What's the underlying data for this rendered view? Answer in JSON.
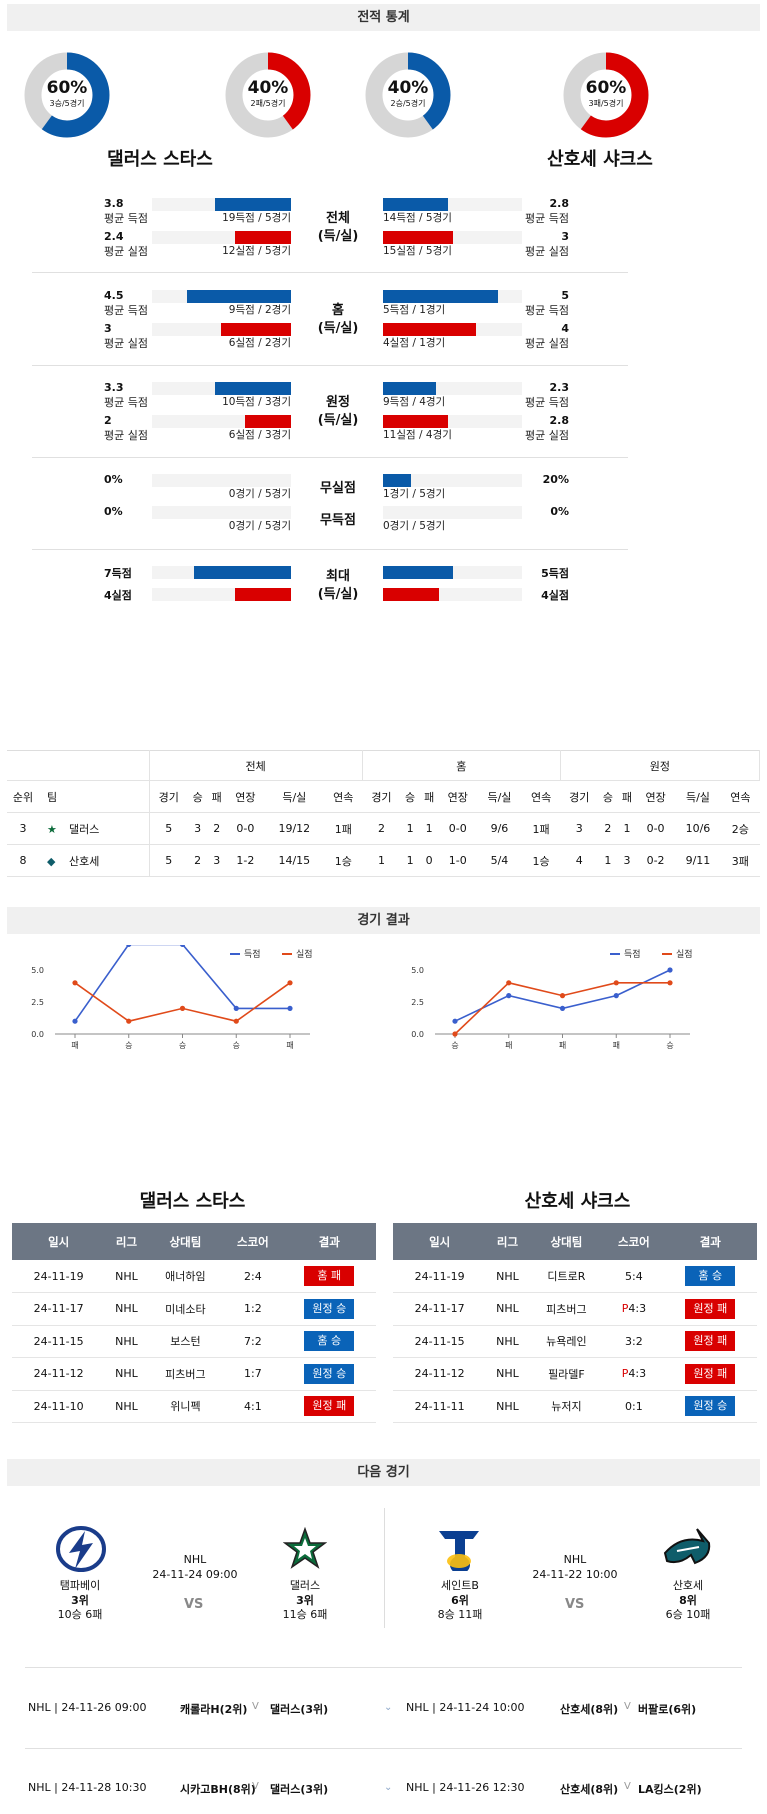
{
  "sections": {
    "stats": "전적 통계",
    "results": "경기 결과",
    "next": "다음 경기"
  },
  "summary": {
    "donuts": [
      {
        "pct": "60%",
        "sub": "3승/5경기",
        "fraction": 0.6,
        "color": "#0a5aa8"
      },
      {
        "pct": "40%",
        "sub": "2패/5경기",
        "fraction": 0.4,
        "color": "#d90000"
      },
      {
        "pct": "40%",
        "sub": "2승/5경기",
        "fraction": 0.4,
        "color": "#0a5aa8"
      },
      {
        "pct": "60%",
        "sub": "3패/5경기",
        "fraction": 0.6,
        "color": "#d90000"
      }
    ],
    "home_team": "댈러스 스타스",
    "away_team": "산호세 샤크스"
  },
  "stat_groups": [
    {
      "center": "전체",
      "center2": "(득/실)",
      "rows": [
        {
          "lval": "3.8",
          "llbl": "평균 득점",
          "lsub": "19득점 / 5경기",
          "lfill": 0.55,
          "rval": "2.8",
          "rlbl": "평균 득점",
          "rsub": "14득점 / 5경기",
          "rfill": 0.47,
          "color": "blue"
        },
        {
          "lval": "2.4",
          "llbl": "평균 실점",
          "lsub": "12실점 / 5경기",
          "lfill": 0.4,
          "rval": "3",
          "rlbl": "평균 실점",
          "rsub": "15실점 / 5경기",
          "rfill": 0.5,
          "color": "red"
        }
      ]
    },
    {
      "center": "홈",
      "center2": "(득/실)",
      "rows": [
        {
          "lval": "4.5",
          "llbl": "평균 득점",
          "lsub": "9득점 / 2경기",
          "lfill": 0.75,
          "rval": "5",
          "rlbl": "평균 득점",
          "rsub": "5득점 / 1경기",
          "rfill": 0.83,
          "color": "blue"
        },
        {
          "lval": "3",
          "llbl": "평균 실점",
          "lsub": "6실점 / 2경기",
          "lfill": 0.5,
          "rval": "4",
          "rlbl": "평균 실점",
          "rsub": "4실점 / 1경기",
          "rfill": 0.67,
          "color": "red"
        }
      ]
    },
    {
      "center": "원정",
      "center2": "(득/실)",
      "rows": [
        {
          "lval": "3.3",
          "llbl": "평균 득점",
          "lsub": "10득점 / 3경기",
          "lfill": 0.55,
          "rval": "2.3",
          "rlbl": "평균 득점",
          "rsub": "9득점 / 4경기",
          "rfill": 0.38,
          "color": "blue"
        },
        {
          "lval": "2",
          "llbl": "평균 실점",
          "lsub": "6실점 / 3경기",
          "lfill": 0.33,
          "rval": "2.8",
          "rlbl": "평균 실점",
          "rsub": "11실점 / 4경기",
          "rfill": 0.47,
          "color": "red"
        }
      ]
    }
  ],
  "zero_groups": [
    {
      "lval": "0%",
      "lsub": "0경기 / 5경기",
      "lfill": 0,
      "center": "무실점",
      "rval": "20%",
      "rsub": "1경기 / 5경기",
      "rfill": 0.2
    },
    {
      "lval": "0%",
      "lsub": "0경기 / 5경기",
      "lfill": 0,
      "center": "무득점",
      "rval": "0%",
      "rsub": "0경기 / 5경기",
      "rfill": 0
    }
  ],
  "max_group": {
    "center": "최대",
    "center2": "(득/실)",
    "rows": [
      {
        "lval": "7득점",
        "lfill": 0.7,
        "rval": "5득점",
        "rfill": 0.5,
        "color": "blue"
      },
      {
        "lval": "4실점",
        "lfill": 0.4,
        "rval": "4실점",
        "rfill": 0.4,
        "color": "red"
      }
    ]
  },
  "standings": {
    "group_headers": [
      "전체",
      "홈",
      "원정"
    ],
    "headers": [
      "순위",
      "팀",
      "경기",
      "승",
      "패",
      "연장",
      "득/실",
      "연속",
      "경기",
      "승",
      "패",
      "연장",
      "득/실",
      "연속",
      "경기",
      "승",
      "패",
      "연장",
      "득/실",
      "연속"
    ],
    "rows": [
      {
        "rank": "3",
        "team": "댈러스",
        "cells": [
          "5",
          "3",
          "2",
          "0-0",
          "19/12",
          "1패",
          "2",
          "1",
          "1",
          "0-0",
          "9/6",
          "1패",
          "3",
          "2",
          "1",
          "0-0",
          "10/6",
          "2승"
        ]
      },
      {
        "rank": "8",
        "team": "산호세",
        "cells": [
          "5",
          "2",
          "3",
          "1-2",
          "14/15",
          "1승",
          "1",
          "1",
          "0",
          "1-0",
          "5/4",
          "1승",
          "4",
          "1",
          "3",
          "0-2",
          "9/11",
          "3패"
        ]
      }
    ]
  },
  "chart_data": [
    {
      "type": "line",
      "categories": [
        "패",
        "승",
        "승",
        "승",
        "패"
      ],
      "series": [
        {
          "name": "득점",
          "values": [
            1,
            7,
            7,
            2,
            2
          ],
          "color": "#3a5fcd"
        },
        {
          "name": "실점",
          "values": [
            4,
            1,
            2,
            1,
            4
          ],
          "color": "#e04a1a"
        }
      ],
      "ylim": [
        0,
        10
      ],
      "yticks": [
        "0.0",
        "2.5",
        "5.0",
        "7.5",
        "10.0"
      ],
      "legend": "top-right"
    },
    {
      "type": "line",
      "categories": [
        "승",
        "패",
        "패",
        "패",
        "승"
      ],
      "series": [
        {
          "name": "득점",
          "values": [
            1,
            3,
            2,
            3,
            5
          ],
          "color": "#3a5fcd"
        },
        {
          "name": "실점",
          "values": [
            0,
            4,
            3,
            4,
            4
          ],
          "color": "#e04a1a"
        }
      ],
      "ylim": [
        0,
        10
      ],
      "yticks": [
        "0.0",
        "2.5",
        "5.0",
        "7.5",
        "10.0"
      ],
      "legend": "top-right"
    }
  ],
  "results": {
    "headers": [
      "일시",
      "리그",
      "상대팀",
      "스코어",
      "결과"
    ],
    "left": [
      {
        "date": "24-11-19",
        "league": "NHL",
        "opp": "애너하임",
        "pfx": "",
        "score": "2:4",
        "result": "홈 패",
        "color": "red"
      },
      {
        "date": "24-11-17",
        "league": "NHL",
        "opp": "미네소타",
        "pfx": "",
        "score": "1:2",
        "result": "원정 승",
        "color": "blue"
      },
      {
        "date": "24-11-15",
        "league": "NHL",
        "opp": "보스턴",
        "pfx": "",
        "score": "7:2",
        "result": "홈 승",
        "color": "blue"
      },
      {
        "date": "24-11-12",
        "league": "NHL",
        "opp": "피츠버그",
        "pfx": "",
        "score": "1:7",
        "result": "원정 승",
        "color": "blue"
      },
      {
        "date": "24-11-10",
        "league": "NHL",
        "opp": "위니펙",
        "pfx": "",
        "score": "4:1",
        "result": "원정 패",
        "color": "red"
      }
    ],
    "right": [
      {
        "date": "24-11-19",
        "league": "NHL",
        "opp": "디트로R",
        "pfx": "",
        "score": "5:4",
        "result": "홈 승",
        "color": "blue"
      },
      {
        "date": "24-11-17",
        "league": "NHL",
        "opp": "피츠버그",
        "pfx": "P",
        "score": "4:3",
        "result": "원정 패",
        "color": "red"
      },
      {
        "date": "24-11-15",
        "league": "NHL",
        "opp": "뉴욕레인",
        "pfx": "",
        "score": "3:2",
        "result": "원정 패",
        "color": "red"
      },
      {
        "date": "24-11-12",
        "league": "NHL",
        "opp": "필라델F",
        "pfx": "P",
        "score": "4:3",
        "result": "원정 패",
        "color": "red"
      },
      {
        "date": "24-11-11",
        "league": "NHL",
        "opp": "뉴저지",
        "pfx": "",
        "score": "0:1",
        "result": "원정 승",
        "color": "blue"
      }
    ]
  },
  "next": {
    "left": {
      "league": "NHL",
      "datetime": "24-11-24 09:00",
      "vs": "VS",
      "t1": {
        "name": "탬파베이",
        "rank": "3위",
        "record": "10승 6패",
        "icon": "lightning-logo-icon"
      },
      "t2": {
        "name": "댈러스",
        "rank": "3위",
        "record": "11승 6패",
        "icon": "star-logo-icon"
      }
    },
    "right": {
      "league": "NHL",
      "datetime": "24-11-22 10:00",
      "vs": "VS",
      "t1": {
        "name": "세인트B",
        "rank": "6위",
        "record": "8승 11패",
        "icon": "note-logo-icon"
      },
      "t2": {
        "name": "산호세",
        "rank": "8위",
        "record": "6승 10패",
        "icon": "shark-logo-icon"
      }
    }
  },
  "upcoming": [
    {
      "l_info": "NHL | 24-11-26 09:00",
      "l_team": "캐롤라H(2위)",
      "l_mid": "V",
      "l_team2": "댈러스(3위)",
      "r_info": "NHL | 24-11-24 10:00",
      "r_team": "산호세(8위)",
      "r_mid": "V",
      "r_team2": "버팔로(6위)"
    },
    {
      "l_info": "NHL | 24-11-28 10:30",
      "l_team": "시카고BH(8위)",
      "l_mid": "V",
      "l_team2": "댈러스(3위)",
      "r_info": "NHL | 24-11-26 12:30",
      "r_team": "산호세(8위)",
      "r_mid": "V",
      "r_team2": "LA킹스(2위)"
    }
  ]
}
